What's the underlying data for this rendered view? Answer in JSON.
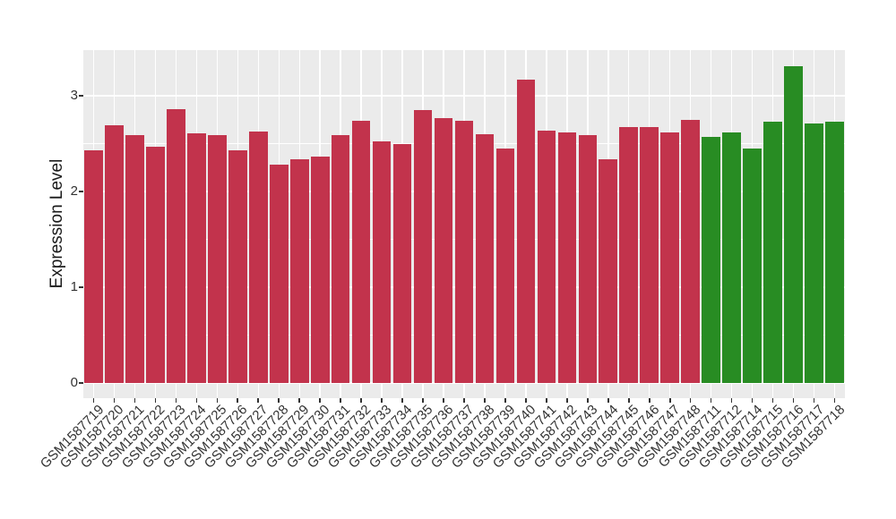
{
  "figure": {
    "title": "",
    "y_axis_title": "Expression Level",
    "x_axis_title": ""
  },
  "chart_data": {
    "type": "bar",
    "title": "",
    "xlabel": "",
    "ylabel": "Expression Level",
    "ylim": [
      -0.17,
      3.47
    ],
    "yticks": [
      0,
      1,
      2,
      3
    ],
    "yticks_minor": [
      0.5,
      1.5,
      2.5
    ],
    "grid": true,
    "legend": false,
    "panel_bg": "#EBEBEB",
    "grid_color": "#FFFFFF",
    "tick_color": "#333333",
    "group_colors": {
      "group1": "#C2334C",
      "group2": "#288C23"
    },
    "categories": [
      "GSM1587719",
      "GSM1587720",
      "GSM1587721",
      "GSM1587722",
      "GSM1587723",
      "GSM1587724",
      "GSM1587725",
      "GSM1587726",
      "GSM1587727",
      "GSM1587728",
      "GSM1587729",
      "GSM1587730",
      "GSM1587731",
      "GSM1587732",
      "GSM1587733",
      "GSM1587734",
      "GSM1587735",
      "GSM1587736",
      "GSM1587737",
      "GSM1587738",
      "GSM1587739",
      "GSM1587740",
      "GSM1587741",
      "GSM1587742",
      "GSM1587743",
      "GSM1587744",
      "GSM1587745",
      "GSM1587746",
      "GSM1587747",
      "GSM1587748",
      "GSM1587711",
      "GSM1587712",
      "GSM1587714",
      "GSM1587715",
      "GSM1587716",
      "GSM1587717",
      "GSM1587718"
    ],
    "values": [
      2.43,
      2.69,
      2.59,
      2.47,
      2.86,
      2.61,
      2.59,
      2.43,
      2.63,
      2.28,
      2.34,
      2.36,
      2.59,
      2.74,
      2.52,
      2.5,
      2.85,
      2.77,
      2.74,
      2.6,
      2.45,
      3.17,
      2.64,
      2.62,
      2.59,
      2.34,
      2.67,
      2.67,
      2.62,
      2.75,
      2.57,
      2.62,
      2.45,
      2.73,
      3.31,
      2.71,
      2.73
    ],
    "groups": [
      "group1",
      "group1",
      "group1",
      "group1",
      "group1",
      "group1",
      "group1",
      "group1",
      "group1",
      "group1",
      "group1",
      "group1",
      "group1",
      "group1",
      "group1",
      "group1",
      "group1",
      "group1",
      "group1",
      "group1",
      "group1",
      "group1",
      "group1",
      "group1",
      "group1",
      "group1",
      "group1",
      "group1",
      "group1",
      "group1",
      "group2",
      "group2",
      "group2",
      "group2",
      "group2",
      "group2",
      "group2"
    ]
  }
}
